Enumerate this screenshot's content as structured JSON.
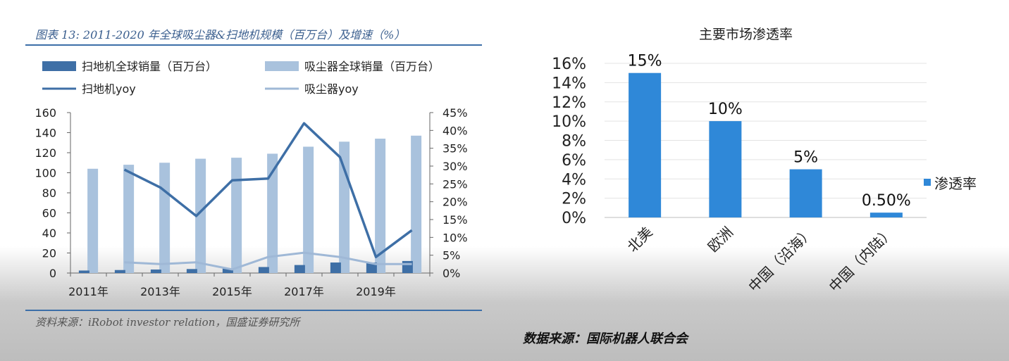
{
  "left_figure": {
    "title": "图表 13:  2011-2020 年全球吸尘器&扫地机规模（百万台）及增速（%）",
    "source": "资料来源：iRobot investor relation，国盛证券研究所"
  },
  "right_figure": {
    "title": "主要市场渗透率",
    "source": "数据来源：国际机器人联合会"
  },
  "colors": {
    "dark_blue": "#3e6fa6",
    "light_blue": "#a9c2dd",
    "yoy_dark": "#3e6fa6",
    "yoy_light": "#9fb8d6",
    "penetration_blue": "#2f88d8",
    "rule": "#3c6fa8"
  },
  "chart_data": [
    {
      "type": "bar",
      "categories": [
        "2011年",
        "2012年",
        "2013年",
        "2014年",
        "2015年",
        "2016年",
        "2017年",
        "2018年",
        "2019年",
        "2020年"
      ],
      "x_tick_labels": [
        "2011年",
        "2013年",
        "2015年",
        "2017年",
        "2019年"
      ],
      "series": [
        {
          "name": "扫地机全球销量（百万台）",
          "kind": "bar",
          "axis": "left",
          "color": "#3e6fa6",
          "values": [
            2.5,
            3,
            3.5,
            4,
            4.5,
            6,
            8,
            10.5,
            10.5,
            12
          ]
        },
        {
          "name": "吸尘器全球销量（百万台）",
          "kind": "bar",
          "axis": "left",
          "color": "#a9c2dd",
          "values": [
            104,
            108,
            110,
            114,
            115,
            119,
            126,
            131,
            134,
            137
          ]
        },
        {
          "name": "扫地机yoy",
          "kind": "line",
          "axis": "right",
          "color": "#3e6fa6",
          "values": [
            null,
            0.29,
            0.24,
            0.16,
            0.26,
            0.265,
            0.42,
            0.325,
            0.045,
            0.12
          ]
        },
        {
          "name": "吸尘器yoy",
          "kind": "line",
          "axis": "right",
          "color": "#9fb8d6",
          "values": [
            null,
            0.03,
            0.025,
            0.03,
            0.01,
            0.045,
            0.057,
            0.045,
            0.025,
            0.025
          ]
        }
      ],
      "yleft": {
        "min": 0,
        "max": 160,
        "ticks": [
          "0",
          "20",
          "40",
          "60",
          "80",
          "100",
          "120",
          "140",
          "160"
        ]
      },
      "yright": {
        "min": 0,
        "max": 0.45,
        "ticks": [
          "0%",
          "5%",
          "10%",
          "15%",
          "20%",
          "25%",
          "30%",
          "35%",
          "40%",
          "45%"
        ]
      },
      "legend_position": "top",
      "grid": false
    },
    {
      "type": "bar",
      "title": "主要市场渗透率",
      "categories": [
        "北美",
        "欧洲",
        "中国（沿海）",
        "中国（内陆）"
      ],
      "series": [
        {
          "name": "渗透率",
          "color": "#2f88d8",
          "values": [
            0.15,
            0.1,
            0.05,
            0.005
          ],
          "data_labels": [
            "15%",
            "10%",
            "5%",
            "0.50%"
          ]
        }
      ],
      "yaxis": {
        "min": 0,
        "max": 0.16,
        "ticks": [
          "0%",
          "2%",
          "4%",
          "6%",
          "8%",
          "10%",
          "12%",
          "14%",
          "16%"
        ]
      },
      "legend_position": "right",
      "grid": true
    }
  ]
}
